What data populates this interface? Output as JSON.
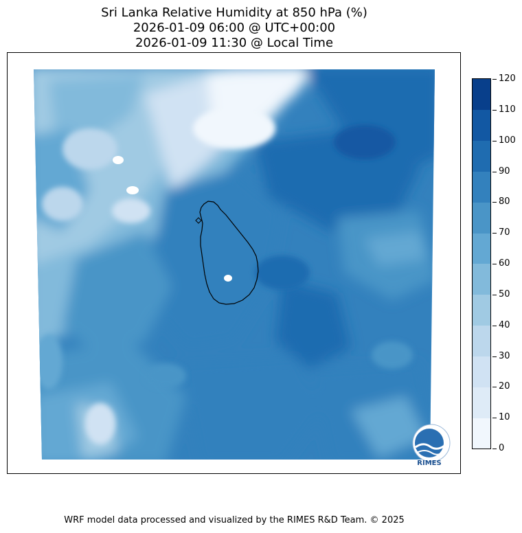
{
  "title": {
    "line1": "Sri Lanka Relative Humidity at 850 hPa (%)",
    "line2": "2026-01-09 06:00 @ UTC+00:00",
    "line3": "2026-01-09 11:30 @ Local Time"
  },
  "colorbar": {
    "levels": [
      "0",
      "10",
      "20",
      "30",
      "40",
      "50",
      "60",
      "70",
      "80",
      "90",
      "100",
      "110",
      "120"
    ],
    "colors": [
      "#f1f7fd",
      "#deebf7",
      "#d0e2f3",
      "#bcd7ec",
      "#a0cae3",
      "#82badb",
      "#63a8d3",
      "#4a95c7",
      "#3381bd",
      "#1f6cb0",
      "#1258a3",
      "#083f8b"
    ]
  },
  "logo": {
    "text": "RIMES"
  },
  "footer": "WRF model data processed and visualized by the RIMES R&D Team. © 2025"
}
